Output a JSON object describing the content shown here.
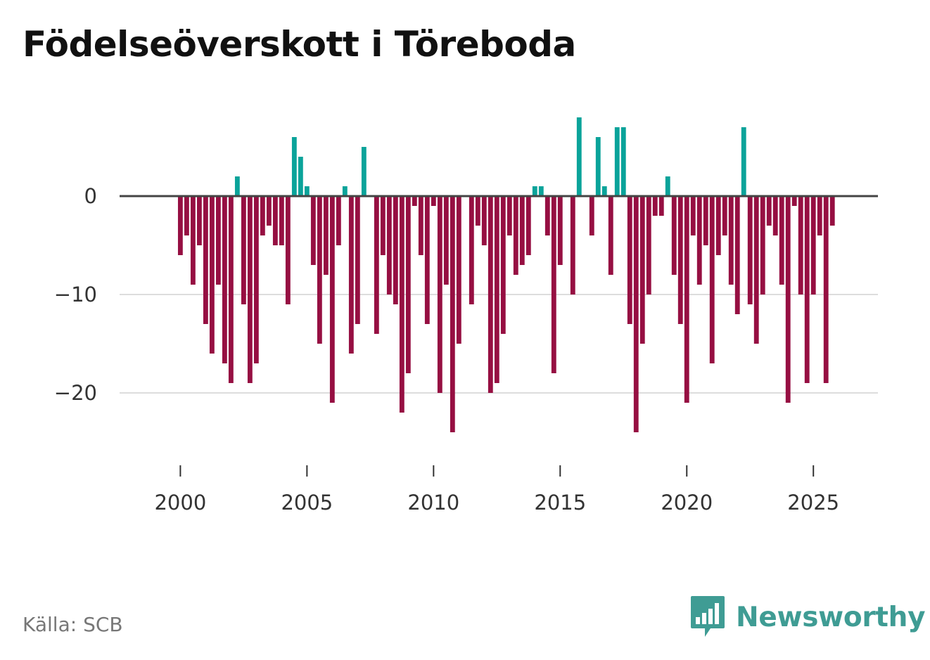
{
  "title": "Födelseöverskott i Töreboda",
  "source": "Källa: SCB",
  "brand": {
    "name": "Newsworthy",
    "icon": "newsworthy-logo-icon"
  },
  "colors": {
    "positive": "#0aa39a",
    "negative": "#960f42",
    "zero_line": "#444444",
    "grid": "#dddddd",
    "brand": "#3f9c94"
  },
  "chart_data": {
    "type": "bar",
    "title": "Födelseöverskott i Töreboda",
    "xlabel": "",
    "ylabel": "",
    "x_start": 2000.0,
    "x_step": 0.25,
    "xlim": [
      1997.6,
      2027.55
    ],
    "ylim": [
      -26,
      9.5
    ],
    "x_ticks": [
      2000,
      2005,
      2010,
      2015,
      2020,
      2025
    ],
    "y_ticks": [
      0,
      -10,
      -20
    ],
    "y_tick_labels": [
      "0",
      "−10",
      "−20"
    ],
    "grid": true,
    "values": [
      -6,
      -4,
      -9,
      -5,
      -13,
      -16,
      -9,
      -17,
      -19,
      2,
      -11,
      -19,
      -17,
      -4,
      -3,
      -5,
      -5,
      -11,
      6,
      4,
      1,
      -7,
      -15,
      -8,
      -21,
      -5,
      1,
      -16,
      -13,
      5,
      0,
      -14,
      -6,
      -10,
      -11,
      -22,
      -18,
      -1,
      -6,
      -13,
      -1,
      -20,
      -9,
      -24,
      -15,
      0,
      -11,
      -3,
      -5,
      -20,
      -19,
      -14,
      -4,
      -8,
      -7,
      -6,
      1,
      1,
      -4,
      -18,
      -7,
      0,
      -10,
      8,
      0,
      -4,
      6,
      1,
      -8,
      7,
      7,
      -13,
      -24,
      -15,
      -10,
      -2,
      -2,
      2,
      -8,
      -13,
      -21,
      -4,
      -9,
      -5,
      -17,
      -6,
      -4,
      -9,
      -12,
      7,
      -11,
      -15,
      -10,
      -3,
      -4,
      -9,
      -21,
      -1,
      -10,
      -19,
      -10,
      -4,
      -19,
      -3
    ]
  }
}
